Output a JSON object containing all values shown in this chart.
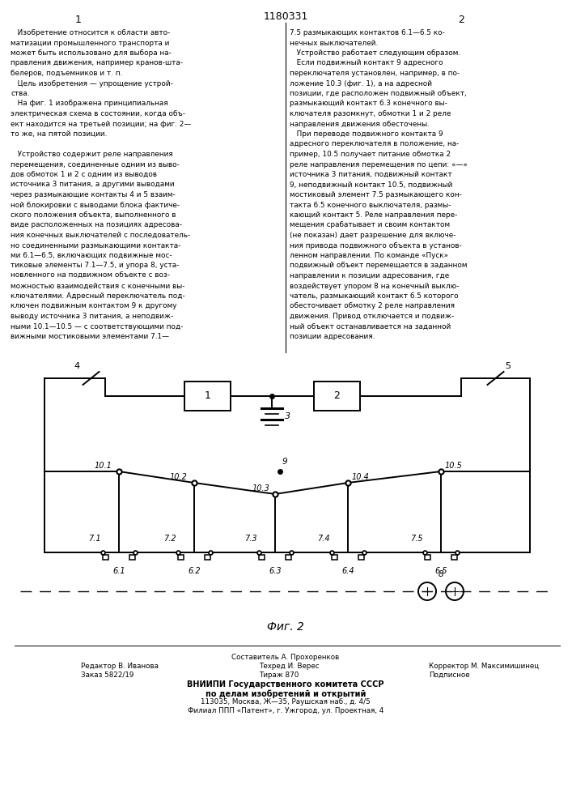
{
  "patent_number": "1180331",
  "col1_header": "1",
  "col2_header": "2",
  "fig_label": "Фиг. 2",
  "col1_text": [
    "   Изобретение относится к области авто-",
    "матизации промышленного транспорта и",
    "может быть использовано для выбора на-",
    "правления движения, например кранов-шта-",
    "белеров, подъемников и т. п.",
    "   Цель изобретения — упрощение устрой-",
    "ства.",
    "   На фиг. 1 изображена принципиальная",
    "электрическая схема в состоянии, когда объ-",
    "ект находится на третьей позиции; на фиг. 2—",
    "то же, на пятой позиции.",
    "",
    "   Устройство содержит реле направления",
    "перемещения, соединенные одним из выво-",
    "дов обмоток 1 и 2 с одним из выводов",
    "источника 3 питания, а другими выводами",
    "через размыкающие контакты 4 и 5 взаим-",
    "ной блокировки с выводами блока фактиче-",
    "ского положения объекта, выполненного в",
    "виде расположенных на позициях адресова-",
    "ния конечных выключателей с последователь-",
    "но соединенными размыкающими контакта-",
    "ми 6.1—6.5, включающих подвижные мос-",
    "тиковые элементы 7.1—7.5, и упора 8, уста-",
    "новленного на подвижном объекте с воз-",
    "можностью взаимодействия с конечными вы-",
    "ключателями. Адресный переключатель под-",
    "ключен подвижным контактом 9 к другому",
    "выводу источника 3 питания, а неподвиж-",
    "ными 10.1—10.5 — с соответствующими под-",
    "вижными мостиковыми элементами 7.1—"
  ],
  "col2_text": [
    "7.5 размыкающих контактов 6.1—6.5 ко-",
    "нечных выключателей.",
    "   Устройство работает следующим образом.",
    "   Если подвижный контакт 9 адресного",
    "переключателя установлен, например, в по-",
    "ложение 10.3 (фиг. 1), а на адресной",
    "позиции, где расположен подвижный объект,",
    "размыкающий контакт 6.3 конечного вы-",
    "ключателя разомкнут, обмотки 1 и 2 реле",
    "направления движения обесточены.",
    "   При переводе подвижного контакта 9",
    "адресного переключателя в положение, на-",
    "пример, 10.5 получает питание обмотка 2",
    "реле направления перемещения по цепи: «—»",
    "источника 3 питания, подвижный контакт",
    "9, неподвижный контакт 10.5, подвижный",
    "мостиковый элемент 7.5 размыкающего кон-",
    "такта 6.5 конечного выключателя, размы-",
    "кающий контакт 5. Реле направления пере-",
    "мещения срабатывает и своим контактом",
    "(не показан) дает разрешение для включе-",
    "ния привода подвижного объекта в установ-",
    "ленном направлении. По команде «Пуск»",
    "подвижный объект перемещается в заданном",
    "направлении к позиции адресования, где",
    "воздействует упором 8 на конечный выклю-",
    "чатель, размыкающий контакт 6.5 которого",
    "обесточивает обмотку 2 реле направления",
    "движения. Привод отключается и подвиж-",
    "ный объект останавливается на заданной",
    "позиции адресования."
  ],
  "bg_color": "#ffffff",
  "text_color": "#000000"
}
